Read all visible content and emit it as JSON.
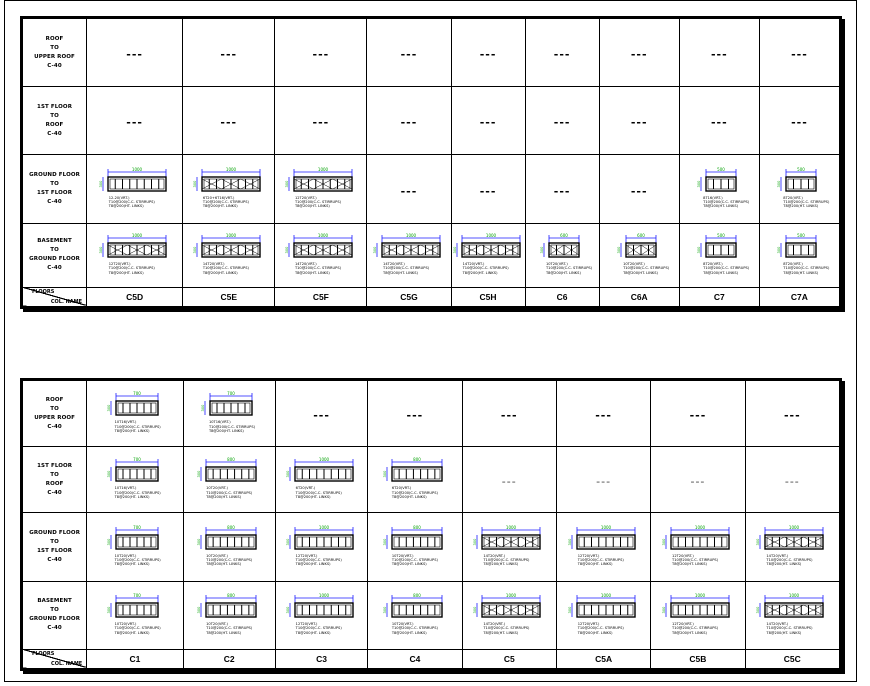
{
  "header": {
    "floors": "FLOORS",
    "col_name": "COL. NAME"
  },
  "colors": {
    "dim_line": "#1a1aff",
    "dim_text": "#00a000",
    "outline": "#000000",
    "empty": "#000000"
  },
  "schedules": [
    {
      "floors": [
        {
          "label": "ROOF\nTO\nUPPER ROOF\nC-40"
        },
        {
          "label": "1ST FLOOR\nTO\nROOF\nC-40"
        },
        {
          "label": "GROUND FLOOR\nTO\n1ST FLOOR\nC-40"
        },
        {
          "label": "BASEMENT\nTO\nGROUND FLOOR\nC-40"
        }
      ],
      "columns": [
        "C5D",
        "C5E",
        "C5F",
        "C5G",
        "C5H",
        "C6",
        "C6A",
        "C7",
        "C7A"
      ],
      "cells": [
        [
          {
            "empty": "---"
          },
          {
            "empty": "---"
          },
          {
            "empty": "---"
          },
          {
            "empty": "---"
          },
          {
            "empty": "---"
          },
          {
            "empty": "---"
          },
          {
            "empty": "---"
          },
          {
            "empty": "---"
          },
          {
            "empty": "---"
          }
        ],
        [
          {
            "empty": "---"
          },
          {
            "empty": "---"
          },
          {
            "empty": "---"
          },
          {
            "empty": "---"
          },
          {
            "empty": "---"
          },
          {
            "empty": "---"
          },
          {
            "empty": "---"
          },
          {
            "empty": "---"
          },
          {
            "empty": "---"
          }
        ],
        [
          {
            "dim": "1000",
            "side": "300",
            "cross": false,
            "notes": [
              "12-20(VRT.)",
              "T10@200(C.C. STIRRUPS)",
              "T8@200(HT. LINKS)"
            ]
          },
          {
            "dim": "1000",
            "side": "300",
            "cross": true,
            "notes": [
              "6T20+6T16(VRT.)",
              "T10@200(C.C. STIRRUPS)",
              "T8@200(HT. LINKS)"
            ]
          },
          {
            "dim": "1000",
            "side": "300",
            "cross": true,
            "notes": [
              "12T20(VRT.)",
              "T10@200(C.C. STIRRUPS)",
              "T8@200(HT. LINKS)"
            ]
          },
          {
            "empty": "---"
          },
          {
            "empty": "---"
          },
          {
            "empty": "---"
          },
          {
            "empty": "---"
          },
          {
            "dim": "500",
            "side": "300",
            "cross": false,
            "small": true,
            "notes": [
              "8T16(VRT.)",
              "T10@200(C.C. STIRRUPS)",
              "T8@200(HT. LINKS)"
            ]
          },
          {
            "dim": "500",
            "side": "300",
            "cross": false,
            "small": true,
            "notes": [
              "8T20(VRT.)",
              "T10@200(C.C. STIRRUPS)",
              "T8@200(HT. LINKS)"
            ]
          }
        ],
        [
          {
            "dim": "1000",
            "side": "300",
            "cross": true,
            "notes": [
              "12T20(VRT.)",
              "T10@200(C.C. STIRRUPS)",
              "T8@200(HT. LINKS)"
            ]
          },
          {
            "dim": "1000",
            "side": "300",
            "cross": true,
            "notes": [
              "14T20(VRT.)",
              "T10@200(C.C. STIRRUPS)",
              "T8@200(HT. LINKS)"
            ]
          },
          {
            "dim": "1000",
            "side": "300",
            "cross": true,
            "notes": [
              "14T20(VRT.)",
              "T10@200(C.C. STIRRUPS)",
              "T8@200(HT. LINKS)"
            ]
          },
          {
            "dim": "1000",
            "side": "300",
            "cross": true,
            "notes": [
              "14T20(VRT.)",
              "T10@200(C.C. STIRRUPS)",
              "T8@200(HT. LINKS)"
            ]
          },
          {
            "dim": "1000",
            "side": "300",
            "cross": true,
            "notes": [
              "14T20(VRT.)",
              "T10@200(C.C. STIRRUPS)",
              "T8@200(HT. LINKS)"
            ]
          },
          {
            "dim": "600",
            "side": "300",
            "cross": true,
            "small": true,
            "notes": [
              "10T20(VRT.)",
              "T10@200(C.C. STIRRUPS)",
              "T8@200(HT. LINKS)"
            ]
          },
          {
            "dim": "600",
            "side": "300",
            "cross": true,
            "small": true,
            "notes": [
              "10T20(VRT.)",
              "T10@200(C.C. STIRRUPS)",
              "T8@200(HT. LINKS)"
            ]
          },
          {
            "dim": "500",
            "side": "300",
            "cross": false,
            "small": true,
            "notes": [
              "8T20(VRT.)",
              "T10@200(C.C. STIRRUPS)",
              "T8@200(HT. LINKS)"
            ]
          },
          {
            "dim": "500",
            "side": "300",
            "cross": false,
            "small": true,
            "notes": [
              "8T20(VRT.)",
              "T10@200(C.C. STIRRUPS)",
              "T8@200(HT. LINKS)"
            ]
          }
        ]
      ]
    },
    {
      "floors": [
        {
          "label": "ROOF\nTO\nUPPER ROOF\nC-40"
        },
        {
          "label": "1ST FLOOR\nTO\nROOF\nC-40"
        },
        {
          "label": "GROUND FLOOR\nTO\n1ST FLOOR\nC-40"
        },
        {
          "label": "BASEMENT\nTO\nGROUND FLOOR\nC-40"
        }
      ],
      "columns": [
        "C1",
        "C2",
        "C3",
        "C4",
        "C5",
        "C5A",
        "C5B",
        "C5C"
      ],
      "cells": [
        [
          {
            "dim": "700",
            "side": "300",
            "cross": false,
            "notes": [
              "10T16(VRT.)",
              "T10@200(C.C. STIRRUPS)",
              "T8@200(HT. LINKS)"
            ]
          },
          {
            "dim": "700",
            "side": "300",
            "cross": false,
            "notes": [
              "10T16(VRT.)",
              "T10@200(C.C. STIRRUPS)",
              "T8@200(HT. LINKS)"
            ]
          },
          {
            "empty": "---"
          },
          {
            "empty": "---"
          },
          {
            "empty": "---"
          },
          {
            "empty": "---"
          },
          {
            "empty": "---"
          },
          {
            "empty": "---"
          }
        ],
        [
          {
            "dim": "700",
            "side": "300",
            "cross": false,
            "notes": [
              "10T16(VRT.)",
              "T10@200(C.C. STIRRUPS)",
              "T8@200(HT. LINKS)"
            ]
          },
          {
            "dim": "800",
            "side": "300",
            "cross": false,
            "notes": [
              "10T20(VRT.)",
              "T10@200(C.C. STIRRUPS)",
              "T8@200(HT. LINKS)"
            ]
          },
          {
            "dim": "1000",
            "side": "300",
            "cross": false,
            "notes": [
              "6T20(VRT.)",
              "T10@200(C.C. STIRRUPS)",
              "T8@200(HT. LINKS)"
            ]
          },
          {
            "dim": "800",
            "side": "300",
            "cross": false,
            "notes": [
              "6T20(VRT.)",
              "T10@200(C.C. STIRRUPS)",
              "T8@200(HT. LINKS)"
            ]
          },
          {
            "empty": "---",
            "light": true
          },
          {
            "empty": "---",
            "light": true
          },
          {
            "empty": "---",
            "light": true
          },
          {
            "empty": "---",
            "light": true
          }
        ],
        [
          {
            "dim": "700",
            "side": "300",
            "cross": false,
            "notes": [
              "10T20(VRT.)",
              "T10@200(C.C. STIRRUPS)",
              "T8@200(HT. LINKS)"
            ]
          },
          {
            "dim": "800",
            "side": "300",
            "cross": false,
            "notes": [
              "10T20(VRT.)",
              "T10@200(C.C. STIRRUPS)",
              "T8@200(HT. LINKS)"
            ]
          },
          {
            "dim": "1000",
            "side": "300",
            "cross": false,
            "notes": [
              "12T20(VRT.)",
              "T10@200(C.C. STIRRUPS)",
              "T8@200(HT. LINKS)"
            ]
          },
          {
            "dim": "800",
            "side": "300",
            "cross": false,
            "notes": [
              "10T20(VRT.)",
              "T10@200(C.C. STIRRUPS)",
              "T8@200(HT. LINKS)"
            ]
          },
          {
            "dim": "1000",
            "side": "300",
            "cross": true,
            "notes": [
              "14T20(VRT.)",
              "T10@200(C.C. STIRRUPS)",
              "T8@200(HT. LINKS)"
            ]
          },
          {
            "dim": "1000",
            "side": "300",
            "cross": false,
            "notes": [
              "12T20(VRT.)",
              "T10@200(C.C. STIRRUPS)",
              "T8@200(HT. LINKS)"
            ]
          },
          {
            "dim": "1000",
            "side": "300",
            "cross": false,
            "notes": [
              "12T20(VRT.)",
              "T10@200(C.C. STIRRUPS)",
              "T8@200(HT. LINKS)"
            ]
          },
          {
            "dim": "1000",
            "side": "300",
            "cross": true,
            "notes": [
              "14T20(VRT.)",
              "T10@200(C.C. STIRRUPS)",
              "T8@200(HT. LINKS)"
            ]
          }
        ],
        [
          {
            "dim": "700",
            "side": "300",
            "cross": false,
            "notes": [
              "10T20(VRT.)",
              "T10@200(C.C. STIRRUPS)",
              "T8@200(HT. LINKS)"
            ]
          },
          {
            "dim": "800",
            "side": "300",
            "cross": false,
            "notes": [
              "10T20(VRT.)",
              "T10@200(C.C. STIRRUPS)",
              "T8@200(HT. LINKS)"
            ]
          },
          {
            "dim": "1000",
            "side": "300",
            "cross": false,
            "notes": [
              "12T20(VRT.)",
              "T10@200(C.C. STIRRUPS)",
              "T8@200(HT. LINKS)"
            ]
          },
          {
            "dim": "800",
            "side": "300",
            "cross": false,
            "notes": [
              "10T20(VRT.)",
              "T10@200(C.C. STIRRUPS)",
              "T8@200(HT. LINKS)"
            ]
          },
          {
            "dim": "1000",
            "side": "300",
            "cross": true,
            "notes": [
              "14T20(VRT.)",
              "T10@200(C.C. STIRRUPS)",
              "T8@200(HT. LINKS)"
            ]
          },
          {
            "dim": "1000",
            "side": "300",
            "cross": false,
            "notes": [
              "12T20(VRT.)",
              "T10@200(C.C. STIRRUPS)",
              "T8@200(HT. LINKS)"
            ]
          },
          {
            "dim": "1000",
            "side": "300",
            "cross": false,
            "notes": [
              "12T20(VRT.)",
              "T10@200(C.C. STIRRUPS)",
              "T8@200(HT. LINKS)"
            ]
          },
          {
            "dim": "1000",
            "side": "300",
            "cross": true,
            "notes": [
              "14T20(VRT.)",
              "T10@200(C.C. STIRRUPS)",
              "T8@200(HT. LINKS)"
            ]
          }
        ]
      ]
    }
  ]
}
